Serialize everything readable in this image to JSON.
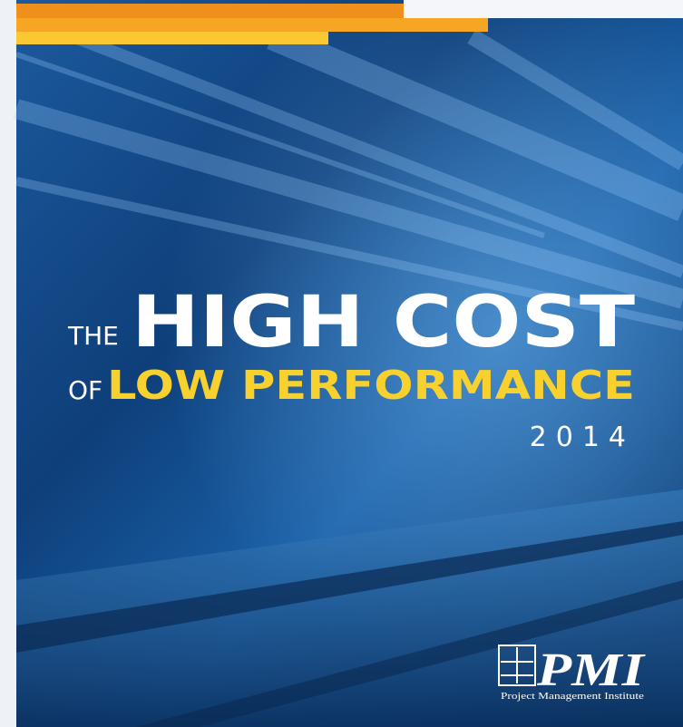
{
  "cover": {
    "title_prefix": "THE",
    "title_main": "HIGH COST",
    "subtitle_prefix": "OF",
    "subtitle_main": "LOW PERFORMANCE",
    "year": "2014"
  },
  "logo": {
    "mark": "PMI",
    "name": "Project Management Institute"
  }
}
